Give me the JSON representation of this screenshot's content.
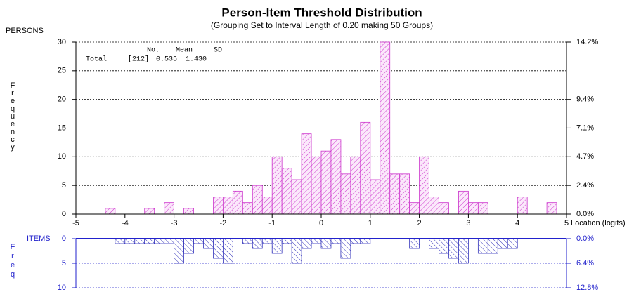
{
  "chart_data": [
    {
      "type": "histogram",
      "orientation": "up",
      "title": "Person-Item Threshold Distribution",
      "subtitle": "(Grouping Set to Interval Length of  0.20  making  50  Groups)",
      "group_label": "PERSONS",
      "ylabel": "Frequency",
      "xlabel": "Location (logits)",
      "color": "#cc33cc",
      "bins": [
        -5,
        -4.8,
        -4.6,
        -4.4,
        -4.2,
        -4,
        -3.8,
        -3.6,
        -3.4,
        -3.2,
        -3,
        -2.8,
        -2.6,
        -2.4,
        -2.2,
        -2,
        -1.8,
        -1.6,
        -1.4,
        -1.2,
        -1,
        -0.8,
        -0.6,
        -0.4,
        -0.2,
        0,
        0.2,
        0.4,
        0.6,
        0.8,
        1,
        1.2,
        1.4,
        1.6,
        1.8,
        2,
        2.2,
        2.4,
        2.6,
        2.8,
        3,
        3.2,
        3.4,
        3.6,
        3.8,
        4,
        4.2,
        4.4,
        4.6,
        4.8,
        5
      ],
      "values": [
        0,
        0,
        0,
        1,
        0,
        0,
        0,
        1,
        0,
        2,
        0,
        1,
        0,
        0,
        3,
        3,
        4,
        2,
        5,
        3,
        10,
        8,
        6,
        14,
        10,
        11,
        13,
        7,
        10,
        16,
        6,
        30,
        7,
        7,
        2,
        10,
        3,
        2,
        0,
        4,
        2,
        2,
        0,
        0,
        0,
        3,
        0,
        0,
        2,
        0
      ],
      "xlim": [
        -5,
        5
      ],
      "xticks": [
        -5,
        -4,
        -3,
        -2,
        -1,
        0,
        1,
        2,
        3,
        4,
        5
      ],
      "ylim": [
        0,
        30
      ],
      "yticks": [
        0,
        5,
        10,
        15,
        20,
        25,
        30
      ],
      "y2lim": [
        0,
        14.15
      ],
      "y2ticks": [
        {
          "value": 0,
          "label": "0.0%"
        },
        {
          "value": 2.36,
          "label": "2.4%"
        },
        {
          "value": 4.72,
          "label": "4.7%"
        },
        {
          "value": 7.08,
          "label": "7.1%"
        },
        {
          "value": 9.43,
          "label": "9.4%"
        },
        {
          "value": 14.15,
          "label": "14.2%"
        }
      ],
      "grid": true,
      "stats": {
        "headers": [
          "No.",
          "Mean",
          "SD"
        ],
        "row": [
          "Total",
          "[212]",
          "0.535",
          "1.430"
        ]
      }
    },
    {
      "type": "histogram",
      "orientation": "down",
      "group_label": "ITEMS",
      "ylabel": "Freq",
      "color": "#3333bb",
      "bins": [
        -5,
        -4.8,
        -4.6,
        -4.4,
        -4.2,
        -4,
        -3.8,
        -3.6,
        -3.4,
        -3.2,
        -3,
        -2.8,
        -2.6,
        -2.4,
        -2.2,
        -2,
        -1.8,
        -1.6,
        -1.4,
        -1.2,
        -1,
        -0.8,
        -0.6,
        -0.4,
        -0.2,
        0,
        0.2,
        0.4,
        0.6,
        0.8,
        1,
        1.2,
        1.4,
        1.6,
        1.8,
        2,
        2.2,
        2.4,
        2.6,
        2.8,
        3,
        3.2,
        3.4,
        3.6,
        3.8,
        4,
        4.2,
        4.4,
        4.6,
        4.8,
        5
      ],
      "values": [
        0,
        0,
        0,
        0,
        1,
        1,
        1,
        1,
        1,
        1,
        5,
        3,
        1,
        2,
        4,
        5,
        0,
        1,
        2,
        1,
        3,
        1,
        5,
        2,
        1,
        2,
        1,
        4,
        1,
        1,
        0,
        0,
        0,
        0,
        2,
        0,
        2,
        3,
        4,
        5,
        0,
        3,
        3,
        2,
        2,
        0,
        0,
        0,
        0,
        0
      ],
      "xlim": [
        -5,
        5
      ],
      "ylim": [
        0,
        10
      ],
      "yticks": [
        0,
        5,
        10
      ],
      "y2lim": [
        0,
        12.82
      ],
      "y2ticks": [
        {
          "value": 0,
          "label": "0.0%"
        },
        {
          "value": 6.41,
          "label": "6.4%"
        },
        {
          "value": 12.82,
          "label": "12.8%"
        }
      ],
      "grid": true
    }
  ]
}
